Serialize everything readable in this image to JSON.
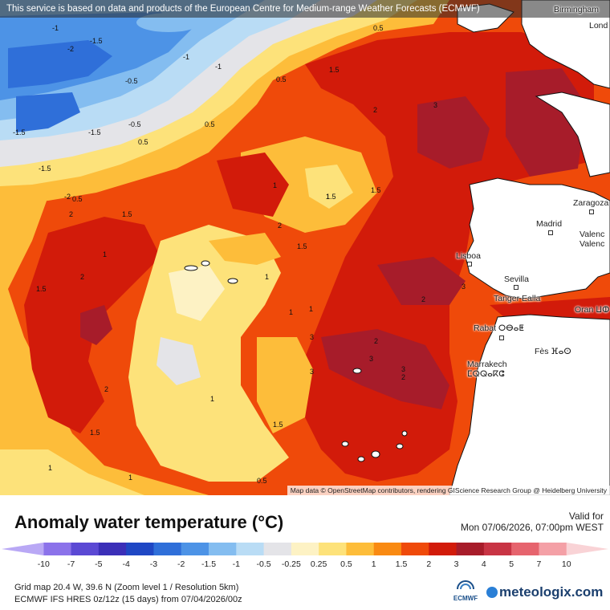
{
  "disclaimer": "This service is based on data and products of the European Centre for Medium-range Weather Forecasts (ECMWF)",
  "attribution": "Map data © OpenStreetMap contributors, rendering GIScience Research Group @ Heidelberg University",
  "cities": [
    {
      "name": "Birmingham"
    },
    {
      "name": "Lond"
    },
    {
      "name": "Zaragoza"
    },
    {
      "name": "Madrid"
    },
    {
      "name": "Valenc Valenc"
    },
    {
      "name": "Lisboa"
    },
    {
      "name": "Sevilla"
    },
    {
      "name": "Tanger Ealla"
    },
    {
      "name": "Oran ⵡⵀ"
    },
    {
      "name": "Rabat ⵔⴱⴰⵟ"
    },
    {
      "name": "Fès ⴼⴰⵙ"
    },
    {
      "name": "Marrakech ⵎⵕⵕⴰⴽⵛ"
    }
  ],
  "contour_labels": [
    "-1",
    "-1.5",
    "-2",
    "-1",
    "-0.5",
    "0.5",
    "1.5",
    "2",
    "3",
    "1",
    "2",
    "1.5",
    "1",
    "2",
    "1.5",
    "3",
    "2",
    "1",
    "1.5",
    "1",
    "2",
    "0.5",
    "1.5",
    "1",
    "2",
    "1.5",
    "1",
    "0.5",
    "2",
    "3",
    "3",
    "3",
    "3",
    "2",
    "1.5",
    "1",
    "1",
    "1.5",
    "0.5",
    "0.5",
    "-1.5",
    "-1.5",
    "-2",
    "-1",
    "-1.5",
    "-0.5",
    "0.5",
    "1"
  ],
  "legend": {
    "title": "Anomaly water temperature (°C)",
    "valid_label": "Valid for",
    "valid_time": "Mon 07/06/2026, 07:00pm WEST",
    "ticks": [
      "-10",
      "-7",
      "-5",
      "-4",
      "-3",
      "-2",
      "-1.5",
      "-1",
      "-0.5",
      "-0.25",
      "0.25",
      "0.5",
      "1",
      "1.5",
      "2",
      "3",
      "4",
      "5",
      "7",
      "10"
    ],
    "colors": [
      "#b9a8f5",
      "#8b72ea",
      "#5b49d4",
      "#3b2fb8",
      "#1f47c4",
      "#2f6fd9",
      "#4d93e6",
      "#84bdf0",
      "#b9dcf5",
      "#e4e4e8",
      "#fdf2c4",
      "#fde27a",
      "#fdbd3a",
      "#f98a12",
      "#ef4a0a",
      "#d21b0a",
      "#a71c2a",
      "#c83444",
      "#e6646e",
      "#f4a0a6",
      "#f9d3d6"
    ]
  },
  "footer": {
    "grid": "Grid map 20.4 W, 39.6 N (Zoom level 1 / Resolution 5km)",
    "model": "ECMWF IFS HRES 0z/12z (15 days) from 07/04/2026/00z",
    "ecmwf_logo": "ECMWF",
    "brand": "meteologix.com"
  }
}
